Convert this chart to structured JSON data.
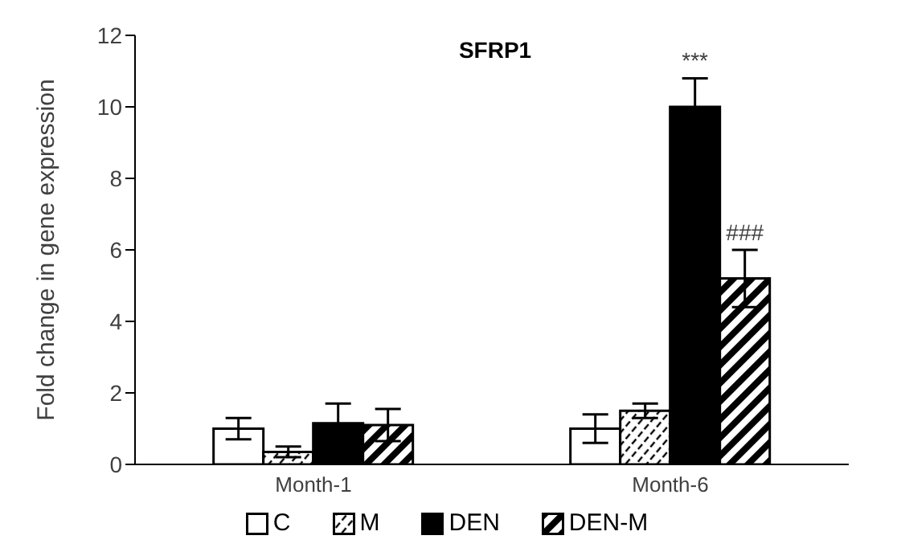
{
  "chart_data": {
    "type": "bar",
    "title": "SFRP1",
    "ylabel": "Fold change in gene expression",
    "categories": [
      "Month-1",
      "Month-6"
    ],
    "series": [
      {
        "name": "C",
        "color": "#ffffff",
        "values": [
          1.0,
          1.0
        ],
        "errors": [
          0.3,
          0.4
        ]
      },
      {
        "name": "M",
        "color": "#000000",
        "values": [
          0.35,
          1.5
        ],
        "errors": [
          0.15,
          0.2
        ]
      },
      {
        "name": "DEN",
        "color": "#000000",
        "values": [
          1.15,
          10.0
        ],
        "errors": [
          0.55,
          0.8
        ]
      },
      {
        "name": "DEN-M",
        "color": "#000000",
        "values": [
          1.1,
          5.2
        ],
        "errors": [
          0.45,
          0.8
        ]
      }
    ],
    "annotations": [
      {
        "text": "***",
        "x": "Month-6",
        "y": 10.0
      },
      {
        "text": "###",
        "x": "Month-6",
        "y": 5.2
      }
    ],
    "ylim": [
      0,
      12
    ],
    "yticks": [
      0,
      2,
      4,
      6,
      8,
      10,
      12
    ],
    "grid": false,
    "legend": "bottom"
  }
}
